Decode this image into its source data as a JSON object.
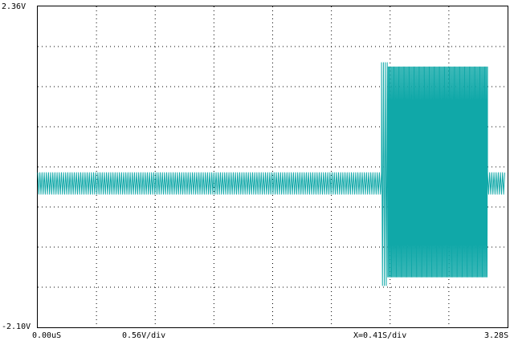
{
  "chart_data": {
    "type": "line",
    "title": "",
    "xlabel": "",
    "ylabel": "",
    "ylim": [
      -2.1,
      2.36
    ],
    "xlim": [
      0.0,
      3.28
    ],
    "grid": true,
    "y_top_label": "2.36V",
    "y_bottom_label": "-2.10V",
    "x_start_label": "0.00uS",
    "volts_per_div_label": "0.56V/div",
    "time_per_div_label": "X=0.41S/div",
    "x_end_label": "3.28S",
    "series": [
      {
        "color": "#10a8a8",
        "segments": [
          {
            "x_start": 0.0,
            "x_end": 2.4,
            "y_min": -0.25,
            "y_max": 0.05,
            "cycles": 160
          },
          {
            "x_start": 2.4,
            "x_end": 2.44,
            "y_min": -1.52,
            "y_max": 1.58,
            "cycles": 3
          },
          {
            "x_start": 2.44,
            "x_end": 3.14,
            "y_min": -1.4,
            "y_max": 1.52,
            "cycles": 105
          },
          {
            "x_start": 3.14,
            "x_end": 3.26,
            "y_min": -0.25,
            "y_max": 0.05,
            "cycles": 8
          }
        ]
      }
    ]
  }
}
